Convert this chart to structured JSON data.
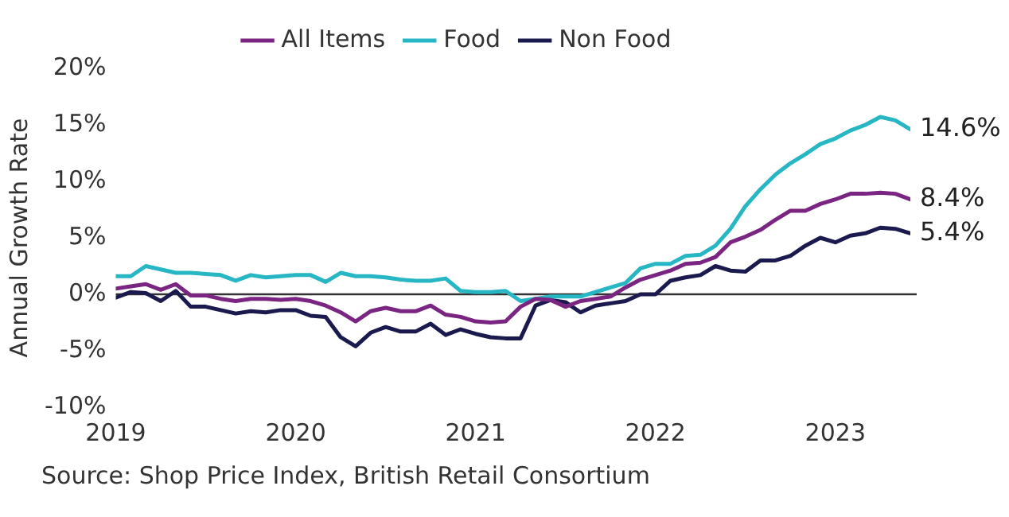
{
  "chart_data": {
    "type": "line",
    "ylabel": "Annual Growth Rate",
    "legend": "top",
    "grid": false,
    "marker": "none",
    "line_style": "solid",
    "x": [
      "2019-01",
      "2019-02",
      "2019-03",
      "2019-04",
      "2019-05",
      "2019-06",
      "2019-07",
      "2019-08",
      "2019-09",
      "2019-10",
      "2019-11",
      "2019-12",
      "2020-01",
      "2020-02",
      "2020-03",
      "2020-04",
      "2020-05",
      "2020-06",
      "2020-07",
      "2020-08",
      "2020-09",
      "2020-10",
      "2020-11",
      "2020-12",
      "2021-01",
      "2021-02",
      "2021-03",
      "2021-04",
      "2021-05",
      "2021-06",
      "2021-07",
      "2021-08",
      "2021-09",
      "2021-10",
      "2021-11",
      "2021-12",
      "2022-01",
      "2022-02",
      "2022-03",
      "2022-04",
      "2022-05",
      "2022-06",
      "2022-07",
      "2022-08",
      "2022-09",
      "2022-10",
      "2022-11",
      "2022-12",
      "2023-01",
      "2023-02",
      "2023-03",
      "2023-04",
      "2023-05",
      "2023-06"
    ],
    "series": [
      {
        "name": "All Items",
        "color": "#7b2582",
        "values": [
          0.5,
          0.7,
          0.9,
          0.4,
          0.9,
          -0.1,
          -0.1,
          -0.4,
          -0.6,
          -0.4,
          -0.4,
          -0.5,
          -0.4,
          -0.6,
          -1.0,
          -1.6,
          -2.4,
          -1.5,
          -1.2,
          -1.5,
          -1.5,
          -1.0,
          -1.8,
          -2.0,
          -2.4,
          -2.5,
          -2.4,
          -1.1,
          -0.4,
          -0.5,
          -1.1,
          -0.6,
          -0.4,
          -0.2,
          0.6,
          1.3,
          1.7,
          2.1,
          2.7,
          2.8,
          3.3,
          4.6,
          5.1,
          5.7,
          6.6,
          7.4,
          7.4,
          8.0,
          8.4,
          8.9,
          8.9,
          9.0,
          8.9,
          8.4
        ]
      },
      {
        "name": "Food",
        "color": "#27b6c4",
        "values": [
          1.6,
          1.6,
          2.5,
          2.2,
          1.9,
          1.9,
          1.8,
          1.7,
          1.2,
          1.7,
          1.5,
          1.6,
          1.7,
          1.7,
          1.1,
          1.9,
          1.6,
          1.6,
          1.5,
          1.3,
          1.2,
          1.2,
          1.4,
          0.3,
          0.2,
          0.2,
          0.3,
          -0.6,
          -0.4,
          -0.2,
          -0.2,
          -0.2,
          0.2,
          0.6,
          1.0,
          2.3,
          2.7,
          2.7,
          3.4,
          3.5,
          4.3,
          5.8,
          7.8,
          9.3,
          10.6,
          11.6,
          12.4,
          13.3,
          13.8,
          14.5,
          15.0,
          15.7,
          15.4,
          14.6
        ]
      },
      {
        "name": "Non Food",
        "color": "#1b1a4e",
        "values": [
          -0.3,
          0.2,
          0.1,
          -0.6,
          0.3,
          -1.1,
          -1.1,
          -1.4,
          -1.7,
          -1.5,
          -1.6,
          -1.4,
          -1.4,
          -1.9,
          -2.0,
          -3.8,
          -4.6,
          -3.4,
          -2.9,
          -3.3,
          -3.3,
          -2.6,
          -3.6,
          -3.1,
          -3.5,
          -3.8,
          -3.9,
          -3.9,
          -1.0,
          -0.5,
          -0.7,
          -1.6,
          -1.0,
          -0.8,
          -0.6,
          0.0,
          0.0,
          1.2,
          1.5,
          1.7,
          2.5,
          2.1,
          2.0,
          3.0,
          3.0,
          3.4,
          4.3,
          5.0,
          4.6,
          5.2,
          5.4,
          5.9,
          5.8,
          5.4
        ]
      }
    ],
    "xlim": [
      "2019-01",
      "2023-06"
    ],
    "xticks": [
      {
        "value": "2019-01",
        "label": "2019"
      },
      {
        "value": "2020-01",
        "label": "2020"
      },
      {
        "value": "2021-01",
        "label": "2021"
      },
      {
        "value": "2022-01",
        "label": "2022"
      },
      {
        "value": "2023-01",
        "label": "2023"
      }
    ],
    "ylim": [
      -10,
      20
    ],
    "yticks": [
      {
        "value": -10,
        "label": "-10%"
      },
      {
        "value": -5,
        "label": "-5%"
      },
      {
        "value": 0,
        "label": "0%"
      },
      {
        "value": 5,
        "label": "5%"
      },
      {
        "value": 10,
        "label": "10%"
      },
      {
        "value": 15,
        "label": "15%"
      },
      {
        "value": 20,
        "label": "20%"
      }
    ],
    "ref_lines": [
      {
        "axis": "y",
        "value": 0,
        "color": "#333333"
      }
    ],
    "annotations": [
      {
        "text": "14.6%",
        "x": "2023-06",
        "y": 14.6
      },
      {
        "text": "8.4%",
        "x": "2023-06",
        "y": 8.4
      },
      {
        "text": "5.4%",
        "x": "2023-06",
        "y": 5.4
      },
      "Source: Shop Price Index, British Retail Consortium"
    ]
  }
}
